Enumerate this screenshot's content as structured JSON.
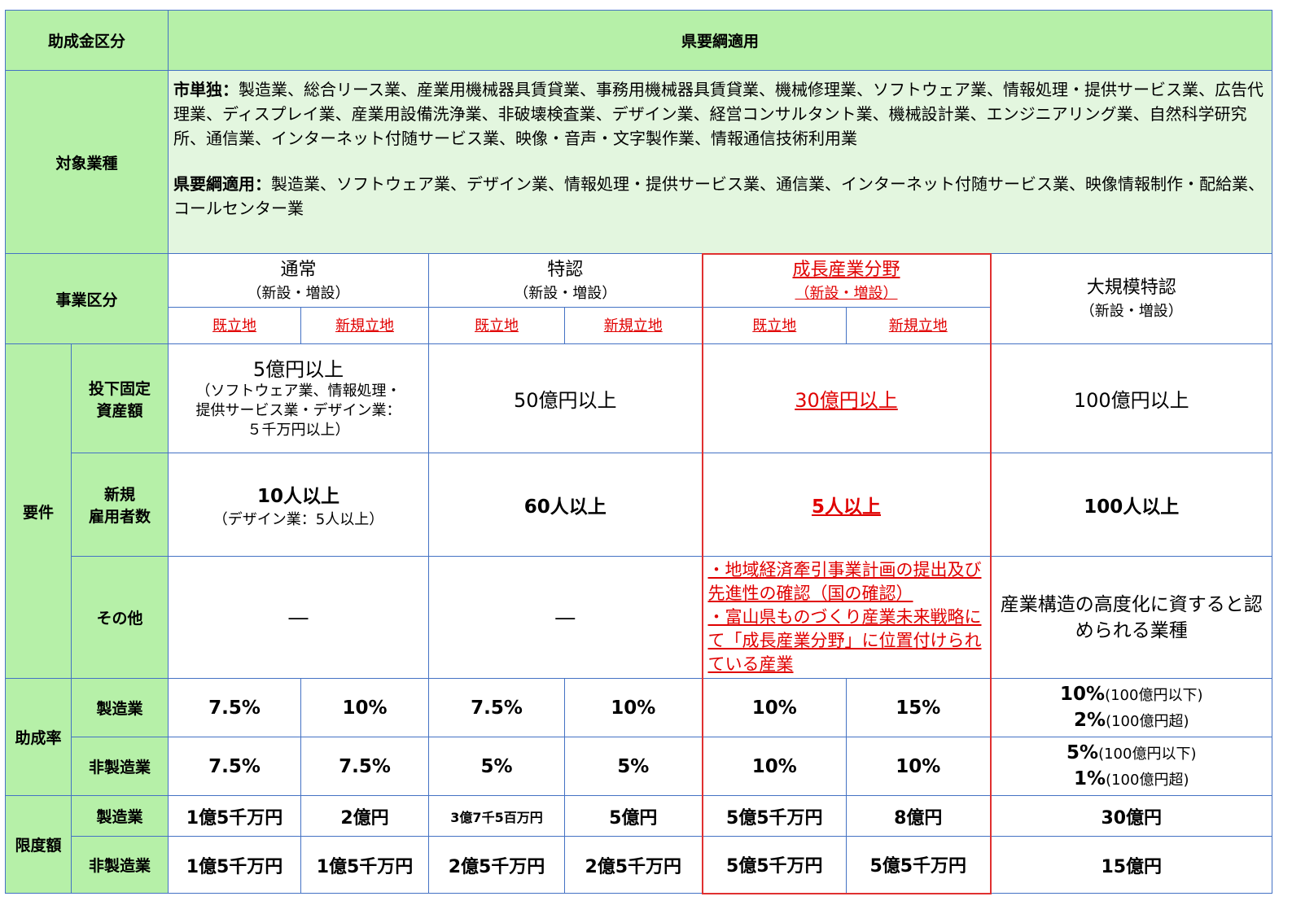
{
  "header": {
    "category_label": "助成金区分",
    "application": "県要綱適用"
  },
  "industries": {
    "label": "対象業種",
    "city_label": "市単独：",
    "city_list": "製造業、総合リース業、産業用機械器具賃貸業、事務用機械器具賃貸業、機械修理業、ソフトウェア業、情報処理・提供サービス業、広告代理業、ディスプレイ業、産業用設備洗浄業、非破壊検査業、デザイン業、経営コンサルタント業、機械設計業、エンジニアリング業、自然科学研究所、通信業、インターネット付随サービス業、映像・音声・文字製作業、情報通信技術利用業",
    "pref_label": "県要綱適用：",
    "pref_list": "製造業、ソフトウェア業、デザイン業、情報処理・提供サービス業、通信業、インターネット付随サービス業、映像情報制作・配給業、コールセンター業"
  },
  "business": {
    "label": "事業区分",
    "normal": {
      "title": "通常",
      "sub": "（新設・増設）"
    },
    "special": {
      "title": "特認",
      "sub": "（新設・増設）"
    },
    "growth": {
      "title": "成長産業分野",
      "sub": "（新設・増設）"
    },
    "large": {
      "title": "大規模特認",
      "sub": "（新設・増設）"
    },
    "existing": "既立地",
    "new_site": "新規立地"
  },
  "requirements": {
    "label": "要件",
    "investment": {
      "label_1": "投下固定",
      "label_2": "資産額",
      "normal_main": "5億円以上",
      "normal_note_1": "（ソフトウェア業、情報処理・",
      "normal_note_2": "提供サービス業・デザイン業：",
      "normal_note_3": "５千万円以上）",
      "special": "50億円以上",
      "growth": "30億円以上",
      "large": "100億円以上"
    },
    "employees": {
      "label_1": "新規",
      "label_2": "雇用者数",
      "normal_main": "10人以上",
      "normal_note": "（デザイン業：5人以上）",
      "special": "60人以上",
      "growth": "5人以上",
      "large": "100人以上"
    },
    "other": {
      "label": "その他",
      "normal": "―",
      "special": "―",
      "growth_1": "・地域経済牽引事業計画の提出及び先進性の確認（国の確認）",
      "growth_2": "・富山県ものづくり産業未来戦略にて「成長産業分野」に位置付けられている産業",
      "large": "産業構造の高度化に資すると認められる業種"
    }
  },
  "rate": {
    "label": "助成率",
    "manufacturing": {
      "label": "製造業",
      "values": [
        "7.5%",
        "10%",
        "7.5%",
        "10%",
        "10%",
        "15%"
      ],
      "large_1": "10%",
      "large_1_note": "(100億円以下)",
      "large_2": "2%",
      "large_2_note": "(100億円超)"
    },
    "non_manufacturing": {
      "label": "非製造業",
      "values": [
        "7.5%",
        "7.5%",
        "5%",
        "5%",
        "10%",
        "10%"
      ],
      "large_1": "5%",
      "large_1_note": "(100億円以下)",
      "large_2": "1%",
      "large_2_note": "(100億円超)"
    }
  },
  "limit": {
    "label": "限度額",
    "manufacturing": {
      "label": "製造業",
      "values": [
        "1億5千万円",
        "2億円",
        "3億7千5百万円",
        "5億円",
        "5億5千万円",
        "8億円"
      ],
      "large": "30億円"
    },
    "non_manufacturing": {
      "label": "非製造業",
      "values": [
        "1億5千万円",
        "1億5千万円",
        "2億5千万円",
        "2億5千万円",
        "5億5千万円",
        "5億5千万円"
      ],
      "large": "15億円"
    }
  }
}
